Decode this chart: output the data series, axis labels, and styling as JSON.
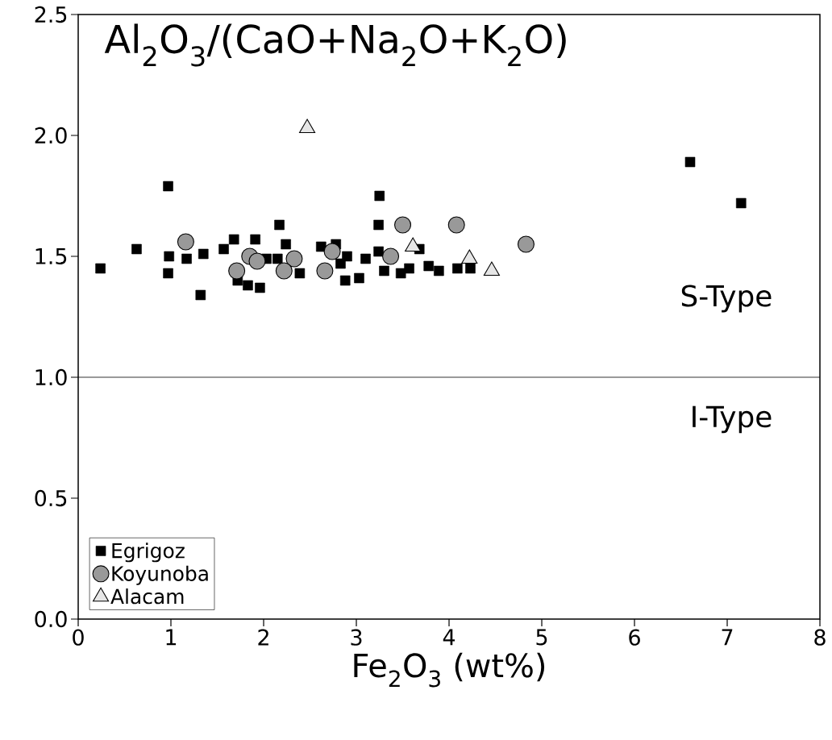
{
  "chart_data": {
    "type": "scatter",
    "title": "Al$_{2}$O$_{3}$/(CaO+Na$_{2}$O+K$_{2}$O)",
    "xlabel": "Fe$_{2}$O$_{3}$ (wt%)",
    "xlim": [
      0,
      8
    ],
    "ylim": [
      0,
      2.5
    ],
    "xticks": [
      0,
      1,
      2,
      3,
      4,
      5,
      6,
      7,
      8
    ],
    "yticks": [
      {
        "value": 0,
        "label": "0.0"
      },
      {
        "value": 0.5,
        "label": "0.5"
      },
      {
        "value": 1,
        "label": "1.0"
      },
      {
        "value": 1.5,
        "label": "1.5"
      },
      {
        "value": 2,
        "label": "2.0"
      },
      {
        "value": 2.5,
        "label": "2.5"
      }
    ],
    "grid": false,
    "legend": "bottom left",
    "ref_lines": [
      {
        "axis": "y",
        "value": 1.0,
        "color": "#000000"
      }
    ],
    "annotations": [
      "S-Type",
      "I-Type"
    ],
    "series": [
      {
        "name": "Egrigoz",
        "color": "#000000",
        "marker": "square",
        "x": [
          0.24,
          0.63,
          2.17,
          1.1,
          0.98,
          1.17,
          1.35,
          0.97,
          1.32,
          1.68,
          1.57,
          1.91,
          2.03,
          2.15,
          2.24,
          1.83,
          1.96,
          1.72,
          2.39,
          0.97,
          3.24,
          2.62,
          2.78,
          2.9,
          2.83,
          2.88,
          3.03,
          3.1,
          3.24,
          3.3,
          3.48,
          3.57,
          3.68,
          3.78,
          3.89,
          4.09,
          4.23,
          3.25,
          6.6,
          7.15
        ],
        "values": [
          1.45,
          1.53,
          1.63,
          null,
          1.5,
          1.49,
          1.51,
          1.43,
          1.34,
          1.57,
          1.53,
          1.57,
          1.49,
          1.49,
          1.55,
          1.38,
          1.37,
          1.4,
          1.43,
          1.79,
          1.63,
          1.54,
          1.55,
          1.5,
          1.47,
          1.4,
          1.41,
          1.49,
          1.52,
          1.44,
          1.43,
          1.45,
          1.53,
          1.46,
          1.44,
          1.45,
          1.45,
          1.75,
          1.89,
          1.72
        ]
      },
      {
        "name": "Koyunoba",
        "color": "#999999",
        "marker": "circle",
        "x": [
          1.16,
          1.85,
          1.93,
          2.33,
          1.71,
          2.22,
          2.74,
          2.66,
          3.37,
          3.5,
          4.08,
          4.83
        ],
        "values": [
          1.56,
          1.5,
          1.48,
          1.49,
          1.44,
          1.44,
          1.52,
          1.44,
          1.5,
          1.63,
          1.63,
          1.55
        ]
      },
      {
        "name": "Alacam",
        "color": "#e6e6e6",
        "marker": "triangle",
        "x": [
          2.47,
          3.61,
          4.22,
          4.46
        ],
        "values": [
          2.03,
          1.54,
          1.49,
          1.44
        ]
      }
    ]
  }
}
